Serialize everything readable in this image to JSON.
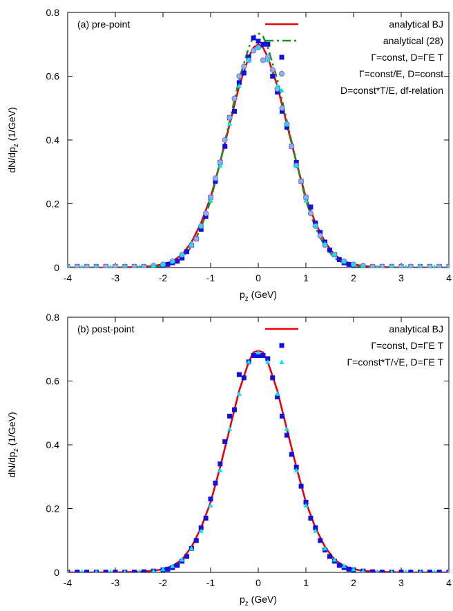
{
  "colors": {
    "analytical_bj": "#e8000b",
    "analytical_28": "#228b22",
    "squares": "#1010e0",
    "circles_fill": "#8fb2e8",
    "circles_edge": "#6f6fd8",
    "magenta": "#e000e0",
    "cyan": "#00e5ee"
  },
  "chart_data": [
    {
      "type": "line",
      "panel_label": "(a) pre-point",
      "xlabel_main": "p",
      "xlabel_sub": "z",
      "xlabel_rest": " (GeV)",
      "ylabel_main": "dN/dp",
      "ylabel_sub": "z",
      "ylabel_rest": " (1/GeV)",
      "xlim": [
        -4,
        4
      ],
      "ylim": [
        0,
        0.8
      ],
      "xticks": [
        "-4",
        "-3",
        "-2",
        "-1",
        "0",
        "1",
        "2",
        "3",
        "4"
      ],
      "yticks": [
        "0",
        "0.2",
        "0.4",
        "0.6",
        "0.8"
      ],
      "legend_position": "top-right",
      "series": [
        {
          "name": "analytical BJ",
          "style": "solid-line",
          "color": "#e8000b",
          "x": [
            -4,
            -3.5,
            -3,
            -2.5,
            -2.2,
            -2,
            -1.8,
            -1.6,
            -1.4,
            -1.2,
            -1,
            -0.8,
            -0.6,
            -0.4,
            -0.2,
            -0.1,
            0,
            0.1,
            0.2,
            0.4,
            0.6,
            0.8,
            1,
            1.2,
            1.4,
            1.6,
            1.8,
            2,
            2.2,
            2.5,
            3,
            3.5,
            4
          ],
          "y": [
            0,
            0,
            0,
            0.002,
            0.005,
            0.01,
            0.02,
            0.04,
            0.08,
            0.14,
            0.22,
            0.33,
            0.45,
            0.57,
            0.66,
            0.69,
            0.7,
            0.69,
            0.66,
            0.57,
            0.45,
            0.33,
            0.22,
            0.14,
            0.08,
            0.04,
            0.02,
            0.01,
            0.005,
            0.002,
            0,
            0,
            0
          ]
        },
        {
          "name": "analytical (28)",
          "style": "dash-dot-line",
          "color": "#228b22",
          "x": [
            -4,
            -3,
            -2.5,
            -2,
            -1.8,
            -1.6,
            -1.4,
            -1.2,
            -1,
            -0.8,
            -0.6,
            -0.4,
            -0.2,
            -0.1,
            0,
            0.1,
            0.2,
            0.4,
            0.6,
            0.8,
            1,
            1.2,
            1.4,
            1.6,
            1.8,
            2,
            2.5,
            3,
            4
          ],
          "y": [
            0,
            0,
            0,
            0.005,
            0.013,
            0.03,
            0.065,
            0.125,
            0.21,
            0.33,
            0.46,
            0.59,
            0.69,
            0.725,
            0.735,
            0.725,
            0.69,
            0.59,
            0.46,
            0.33,
            0.21,
            0.125,
            0.065,
            0.03,
            0.013,
            0.005,
            0,
            0,
            0
          ]
        },
        {
          "name": "Γ=const, D=ΓE T",
          "style": "square-markers",
          "color": "#1010e0",
          "x": [
            -4,
            -3.8,
            -3.6,
            -3.4,
            -3.2,
            -3,
            -2.8,
            -2.6,
            -2.4,
            -2.2,
            -2,
            -1.9,
            -1.8,
            -1.7,
            -1.6,
            -1.5,
            -1.4,
            -1.3,
            -1.2,
            -1.1,
            -1,
            -0.9,
            -0.8,
            -0.7,
            -0.6,
            -0.5,
            -0.4,
            -0.3,
            -0.2,
            -0.1,
            0,
            0.1,
            0.2,
            0.3,
            0.4,
            0.5,
            0.6,
            0.7,
            0.8,
            0.9,
            1,
            1.1,
            1.2,
            1.3,
            1.4,
            1.5,
            1.6,
            1.7,
            1.8,
            1.9,
            2,
            2.2,
            2.4,
            2.6,
            2.8,
            3,
            3.2,
            3.4,
            3.6,
            3.8,
            4
          ],
          "y": [
            0.003,
            0.003,
            0.003,
            0.003,
            0.003,
            0.003,
            0.003,
            0.003,
            0.003,
            0.004,
            0.007,
            0.01,
            0.015,
            0.02,
            0.03,
            0.05,
            0.07,
            0.09,
            0.12,
            0.16,
            0.22,
            0.27,
            0.33,
            0.38,
            0.47,
            0.49,
            0.58,
            0.61,
            0.66,
            0.72,
            0.71,
            0.7,
            0.7,
            0.6,
            0.55,
            0.49,
            0.44,
            0.38,
            0.33,
            0.27,
            0.22,
            0.19,
            0.14,
            0.11,
            0.08,
            0.055,
            0.04,
            0.025,
            0.015,
            0.01,
            0.007,
            0.004,
            0.003,
            0.003,
            0.003,
            0.003,
            0.003,
            0.003,
            0.003,
            0.003,
            0.003
          ]
        },
        {
          "name": "Γ=const/E, D=const",
          "style": "circle-markers",
          "color": "#e000e0",
          "x": [
            -4,
            -3.8,
            -3.6,
            -3.4,
            -3.2,
            -3,
            -2.8,
            -2.6,
            -2.4,
            -2.2,
            -2,
            -1.8,
            -1.6,
            -1.4,
            -1.3,
            -1.2,
            -1.1,
            -1,
            -0.9,
            -0.8,
            -0.7,
            -0.6,
            -0.5,
            -0.4,
            -0.3,
            -0.2,
            -0.1,
            0,
            0.1,
            0.2,
            0.3,
            0.4,
            0.5,
            0.6,
            0.7,
            0.8,
            0.9,
            1,
            1.1,
            1.2,
            1.3,
            1.4,
            1.6,
            1.8,
            2,
            2.2,
            2.4,
            2.6,
            2.8,
            3,
            3.2,
            3.4,
            3.6,
            3.8,
            4
          ],
          "y": [
            0.003,
            0.003,
            0.003,
            0.003,
            0.003,
            0.003,
            0.003,
            0.003,
            0.003,
            0.006,
            0.01,
            0.02,
            0.04,
            0.07,
            0.09,
            0.13,
            0.17,
            0.22,
            0.28,
            0.33,
            0.4,
            0.47,
            0.53,
            0.6,
            0.63,
            0.65,
            0.68,
            0.69,
            0.65,
            0.66,
            0.62,
            0.56,
            0.5,
            0.45,
            0.38,
            0.32,
            0.27,
            0.22,
            0.17,
            0.13,
            0.1,
            0.07,
            0.04,
            0.02,
            0.01,
            0.006,
            0.003,
            0.003,
            0.003,
            0.003,
            0.003,
            0.003,
            0.003,
            0.003,
            0.003
          ]
        },
        {
          "name": "D=const*T/E, df-relation",
          "style": "triangle-markers",
          "color": "#00e5ee",
          "x": [
            -4,
            -3.7,
            -3.4,
            -3.1,
            -2.8,
            -2.5,
            -2.2,
            -2,
            -1.8,
            -1.6,
            -1.4,
            -1.2,
            -1,
            -0.8,
            -0.6,
            -0.4,
            -0.2,
            0,
            0.2,
            0.4,
            0.6,
            0.8,
            1,
            1.2,
            1.4,
            1.6,
            1.8,
            2,
            2.2,
            2.5,
            2.8,
            3.1,
            3.4,
            3.7,
            4
          ],
          "y": [
            0.002,
            0.002,
            0.002,
            0.002,
            0.002,
            0.002,
            0.005,
            0.01,
            0.02,
            0.04,
            0.075,
            0.13,
            0.21,
            0.32,
            0.45,
            0.57,
            0.65,
            0.69,
            0.65,
            0.57,
            0.45,
            0.32,
            0.21,
            0.13,
            0.075,
            0.04,
            0.02,
            0.01,
            0.005,
            0.002,
            0.002,
            0.002,
            0.002,
            0.002,
            0.002
          ]
        }
      ]
    },
    {
      "type": "line",
      "panel_label": "(b) post-point",
      "xlabel_main": "p",
      "xlabel_sub": "z",
      "xlabel_rest": " (GeV)",
      "ylabel_main": "dN/dp",
      "ylabel_sub": "z",
      "ylabel_rest": " (1/GeV)",
      "xlim": [
        -4,
        4
      ],
      "ylim": [
        0,
        0.8
      ],
      "xticks": [
        "-4",
        "-3",
        "-2",
        "-1",
        "0",
        "1",
        "2",
        "3",
        "4"
      ],
      "yticks": [
        "0",
        "0.2",
        "0.4",
        "0.6",
        "0.8"
      ],
      "legend_position": "top-right",
      "series": [
        {
          "name": "analytical BJ",
          "style": "solid-line",
          "color": "#e8000b",
          "x": [
            -4,
            -3.5,
            -3,
            -2.5,
            -2.2,
            -2,
            -1.8,
            -1.6,
            -1.4,
            -1.2,
            -1,
            -0.8,
            -0.6,
            -0.4,
            -0.2,
            -0.1,
            0,
            0.1,
            0.2,
            0.4,
            0.6,
            0.8,
            1,
            1.2,
            1.4,
            1.6,
            1.8,
            2,
            2.2,
            2.5,
            3,
            3.5,
            4
          ],
          "y": [
            0,
            0,
            0,
            0.002,
            0.005,
            0.01,
            0.02,
            0.04,
            0.08,
            0.14,
            0.22,
            0.33,
            0.45,
            0.57,
            0.66,
            0.69,
            0.695,
            0.69,
            0.66,
            0.57,
            0.45,
            0.33,
            0.22,
            0.14,
            0.08,
            0.04,
            0.02,
            0.01,
            0.005,
            0.002,
            0,
            0,
            0
          ]
        },
        {
          "name": "Γ=const, D=ΓE T",
          "style": "square-markers",
          "color": "#1010e0",
          "x": [
            -4,
            -3.8,
            -3.6,
            -3.4,
            -3.2,
            -3,
            -2.8,
            -2.6,
            -2.4,
            -2.2,
            -2,
            -1.9,
            -1.8,
            -1.7,
            -1.6,
            -1.5,
            -1.4,
            -1.3,
            -1.2,
            -1.1,
            -1,
            -0.9,
            -0.8,
            -0.7,
            -0.6,
            -0.5,
            -0.4,
            -0.3,
            -0.2,
            -0.1,
            0,
            0.1,
            0.2,
            0.3,
            0.4,
            0.5,
            0.6,
            0.7,
            0.8,
            0.9,
            1,
            1.1,
            1.2,
            1.3,
            1.4,
            1.5,
            1.6,
            1.7,
            1.8,
            1.9,
            2,
            2.2,
            2.4,
            2.6,
            2.8,
            3,
            3.2,
            3.4,
            3.6,
            3.8,
            4
          ],
          "y": [
            0.001,
            0.001,
            0.001,
            0.001,
            0.001,
            0.001,
            0.001,
            0.001,
            0.002,
            0.004,
            0.008,
            0.01,
            0.015,
            0.022,
            0.035,
            0.05,
            0.075,
            0.1,
            0.14,
            0.17,
            0.23,
            0.28,
            0.34,
            0.41,
            0.49,
            0.51,
            0.62,
            0.61,
            0.66,
            0.68,
            0.68,
            0.68,
            0.67,
            0.61,
            0.55,
            0.49,
            0.43,
            0.37,
            0.33,
            0.27,
            0.22,
            0.17,
            0.14,
            0.1,
            0.07,
            0.05,
            0.035,
            0.022,
            0.015,
            0.01,
            0.008,
            0.004,
            0.002,
            0.001,
            0.001,
            0.001,
            0.001,
            0.001,
            0.001,
            0.001,
            0.001
          ]
        },
        {
          "name": "Γ=const*T/√E, D=ΓE T",
          "style": "triangle-markers",
          "color": "#00e5ee",
          "x": [
            -4,
            -3.7,
            -3.4,
            -3.1,
            -2.8,
            -2.5,
            -2.2,
            -2,
            -1.8,
            -1.6,
            -1.4,
            -1.2,
            -1,
            -0.8,
            -0.6,
            -0.4,
            -0.2,
            0,
            0.2,
            0.4,
            0.6,
            0.8,
            1,
            1.2,
            1.4,
            1.6,
            1.8,
            2,
            2.2,
            2.5,
            2.8,
            3.1,
            3.4,
            3.7,
            4
          ],
          "y": [
            0.002,
            0.002,
            0.002,
            0.002,
            0.002,
            0.002,
            0.005,
            0.01,
            0.02,
            0.04,
            0.075,
            0.13,
            0.21,
            0.32,
            0.45,
            0.56,
            0.66,
            0.69,
            0.66,
            0.56,
            0.45,
            0.32,
            0.21,
            0.13,
            0.075,
            0.04,
            0.02,
            0.01,
            0.005,
            0.002,
            0.002,
            0.002,
            0.002,
            0.002,
            0.002
          ]
        }
      ]
    }
  ]
}
